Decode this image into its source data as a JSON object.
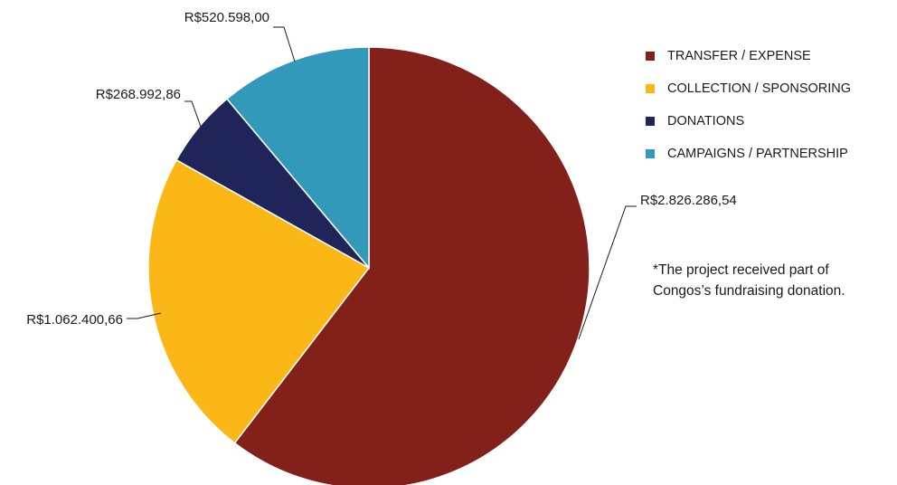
{
  "chart_data": {
    "type": "pie",
    "title": "",
    "start": "top",
    "direction": "clockwise",
    "slices": [
      {
        "name": "TRANSFER / EXPENSE",
        "value": 2826286.54,
        "label": "R$2.826.286,54",
        "color": "#83201A"
      },
      {
        "name": "COLLECTION / SPONSORING",
        "value": 1062400.66,
        "label": "R$1.062.400,66",
        "color": "#FBB716"
      },
      {
        "name": "DONATIONS",
        "value": 268992.86,
        "label": "R$268.992,86",
        "color": "#1F2558"
      },
      {
        "name": "CAMPAIGNS / PARTNERSHIP",
        "value": 520598.0,
        "label": "R$520.598,00",
        "color": "#3399BA"
      }
    ],
    "legend_position": "right"
  },
  "note": {
    "line1": "*The project received part of",
    "line2": "Congos’s fundraising donation."
  }
}
